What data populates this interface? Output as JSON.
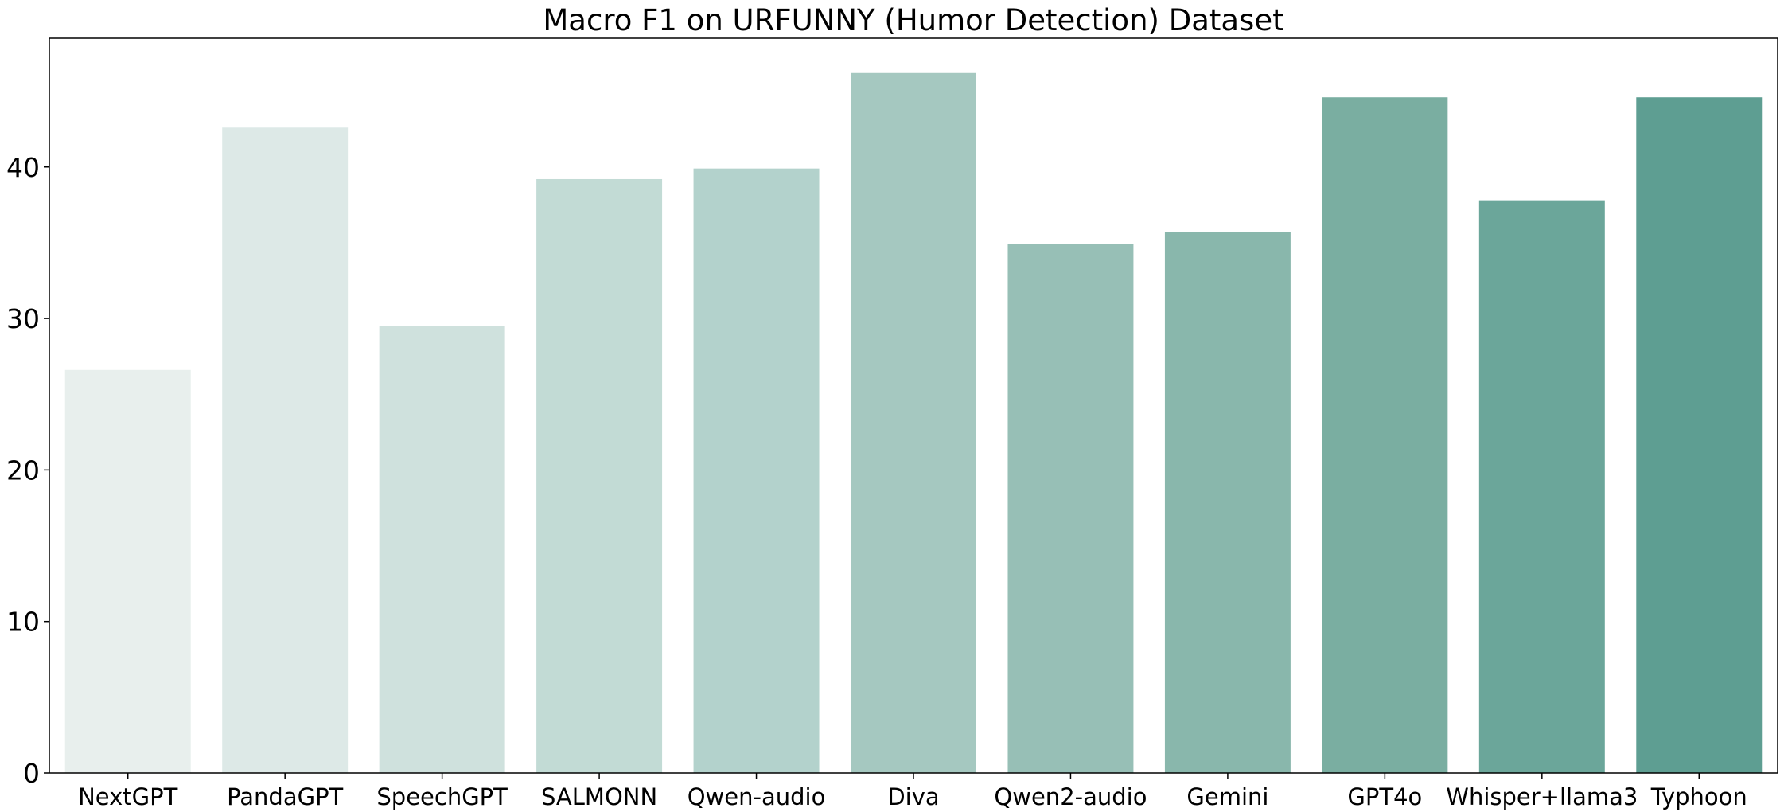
{
  "chart_data": {
    "type": "bar",
    "title": "Macro F1 on URFUNNY (Humor Detection) Dataset",
    "xlabel": "",
    "ylabel": "",
    "categories": [
      "NextGPT",
      "PandaGPT",
      "SpeechGPT",
      "SALMONN",
      "Qwen-audio",
      "Diva",
      "Qwen2-audio",
      "Gemini",
      "GPT4o",
      "Whisper+llama3",
      "Typhoon"
    ],
    "values": [
      26.6,
      42.6,
      29.5,
      39.2,
      39.9,
      46.2,
      34.9,
      35.7,
      44.6,
      37.8,
      44.6
    ],
    "colors": [
      "#e8efed",
      "#dde9e7",
      "#cfe1dd",
      "#c2dbd5",
      "#b3d2cc",
      "#a5c8c0",
      "#97bfb6",
      "#89b7ac",
      "#7aaea1",
      "#6ba69a",
      "#5e9e92"
    ],
    "ylim": [
      0,
      48.5
    ],
    "yticks": [
      0,
      10,
      20,
      30,
      40
    ],
    "grid": false,
    "legend": "none"
  }
}
